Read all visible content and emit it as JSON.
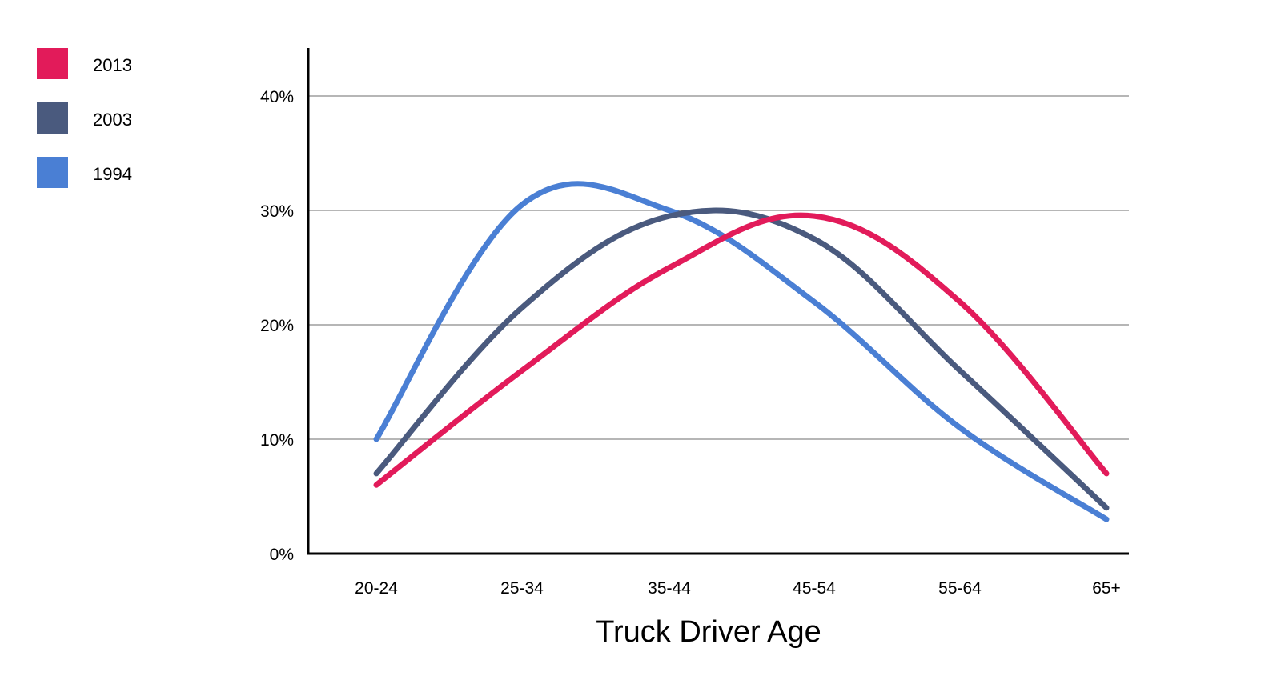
{
  "chart_data": {
    "type": "line",
    "title": "",
    "xlabel": "Truck Driver Age",
    "ylabel": "",
    "categories": [
      "20-24",
      "25-34",
      "35-44",
      "45-54",
      "55-64",
      "65+"
    ],
    "ylim": [
      0,
      40
    ],
    "yticks": [
      0,
      10,
      20,
      30,
      40
    ],
    "ytick_labels": [
      "0%",
      "10%",
      "20%",
      "30%",
      "40%"
    ],
    "grid": true,
    "legend_position": "top-left",
    "series": [
      {
        "name": "2013",
        "color": "#e21b5a",
        "values": [
          6,
          16,
          25,
          29.5,
          22,
          7
        ]
      },
      {
        "name": "2003",
        "color": "#4a5a7e",
        "values": [
          7,
          21.5,
          29.5,
          27.5,
          16,
          4
        ]
      },
      {
        "name": "1994",
        "color": "#4a7fd4",
        "values": [
          10,
          30.5,
          30,
          22,
          11,
          3
        ]
      }
    ]
  }
}
